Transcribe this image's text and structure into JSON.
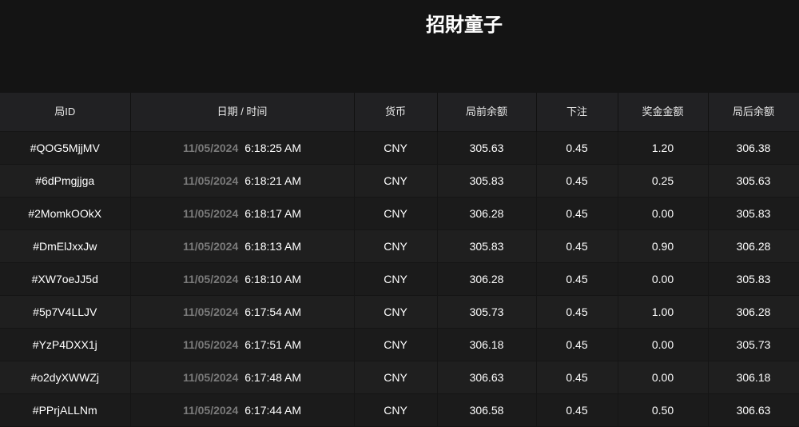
{
  "title": "招財童子",
  "columns": [
    "局ID",
    "日期 / 时间",
    "货币",
    "局前余额",
    "下注",
    "奖金金额",
    "局后余额"
  ],
  "rows": [
    {
      "id": "#QOG5MjjMV",
      "date": "11/05/2024",
      "time": "6:18:25 AM",
      "currency": "CNY",
      "before": "305.63",
      "bet": "0.45",
      "win": "1.20",
      "after": "306.38"
    },
    {
      "id": "#6dPmgjjga",
      "date": "11/05/2024",
      "time": "6:18:21 AM",
      "currency": "CNY",
      "before": "305.83",
      "bet": "0.45",
      "win": "0.25",
      "after": "305.63"
    },
    {
      "id": "#2MomkOOkX",
      "date": "11/05/2024",
      "time": "6:18:17 AM",
      "currency": "CNY",
      "before": "306.28",
      "bet": "0.45",
      "win": "0.00",
      "after": "305.83"
    },
    {
      "id": "#DmElJxxJw",
      "date": "11/05/2024",
      "time": "6:18:13 AM",
      "currency": "CNY",
      "before": "305.83",
      "bet": "0.45",
      "win": "0.90",
      "after": "306.28"
    },
    {
      "id": "#XW7oeJJ5d",
      "date": "11/05/2024",
      "time": "6:18:10 AM",
      "currency": "CNY",
      "before": "306.28",
      "bet": "0.45",
      "win": "0.00",
      "after": "305.83"
    },
    {
      "id": "#5p7V4LLJV",
      "date": "11/05/2024",
      "time": "6:17:54 AM",
      "currency": "CNY",
      "before": "305.73",
      "bet": "0.45",
      "win": "1.00",
      "after": "306.28"
    },
    {
      "id": "#YzP4DXX1j",
      "date": "11/05/2024",
      "time": "6:17:51 AM",
      "currency": "CNY",
      "before": "306.18",
      "bet": "0.45",
      "win": "0.00",
      "after": "305.73"
    },
    {
      "id": "#o2dyXWWZj",
      "date": "11/05/2024",
      "time": "6:17:48 AM",
      "currency": "CNY",
      "before": "306.63",
      "bet": "0.45",
      "win": "0.00",
      "after": "306.18"
    },
    {
      "id": "#PPrjALLNm",
      "date": "11/05/2024",
      "time": "6:17:44 AM",
      "currency": "CNY",
      "before": "306.58",
      "bet": "0.45",
      "win": "0.50",
      "after": "306.63"
    }
  ]
}
